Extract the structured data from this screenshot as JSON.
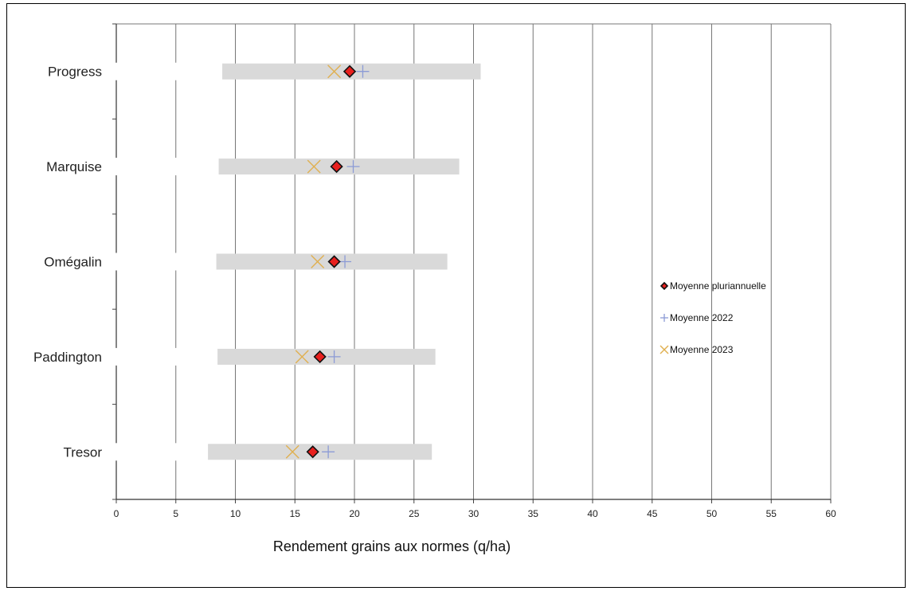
{
  "chart_data": {
    "type": "range-dot",
    "categories": [
      "Progress",
      "Marquise",
      "Omégalin",
      "Paddington",
      "Tresor"
    ],
    "ranges": [
      [
        8.9,
        30.6
      ],
      [
        8.6,
        28.8
      ],
      [
        8.4,
        27.8
      ],
      [
        8.5,
        26.8
      ],
      [
        7.7,
        26.5
      ]
    ],
    "series": [
      {
        "name": "Moyenne pluriannuelle",
        "marker": "diamond",
        "color": "#e8201e",
        "values": [
          19.6,
          18.5,
          18.3,
          17.1,
          16.5
        ]
      },
      {
        "name": "Moyenne 2022",
        "marker": "plus",
        "color": "#8c9bd6",
        "values": [
          20.7,
          19.9,
          19.2,
          18.3,
          17.8
        ]
      },
      {
        "name": "Moyenne 2023",
        "marker": "x",
        "color": "#e0b050",
        "values": [
          18.3,
          16.6,
          16.9,
          15.6,
          14.8
        ]
      }
    ],
    "xlabel": "Rendement grains aux normes (q/ha)",
    "xlim": [
      0,
      60
    ],
    "xticks": [
      0,
      5,
      10,
      15,
      20,
      25,
      30,
      35,
      40,
      45,
      50,
      55,
      60
    ],
    "grid": true,
    "legend_position": "right",
    "range_color": "#d9d9d9"
  }
}
